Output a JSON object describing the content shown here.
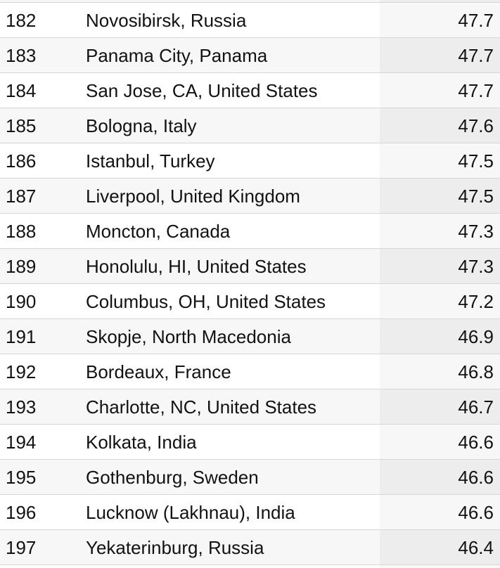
{
  "table": {
    "rows": [
      {
        "rank": "182",
        "city": "Novosibirsk, Russia",
        "score": "47.7"
      },
      {
        "rank": "183",
        "city": "Panama City, Panama",
        "score": "47.7"
      },
      {
        "rank": "184",
        "city": "San Jose, CA, United States",
        "score": "47.7"
      },
      {
        "rank": "185",
        "city": "Bologna, Italy",
        "score": "47.6"
      },
      {
        "rank": "186",
        "city": "Istanbul, Turkey",
        "score": "47.5"
      },
      {
        "rank": "187",
        "city": "Liverpool, United Kingdom",
        "score": "47.5"
      },
      {
        "rank": "188",
        "city": "Moncton, Canada",
        "score": "47.3"
      },
      {
        "rank": "189",
        "city": "Honolulu, HI, United States",
        "score": "47.3"
      },
      {
        "rank": "190",
        "city": "Columbus, OH, United States",
        "score": "47.2"
      },
      {
        "rank": "191",
        "city": "Skopje, North Macedonia",
        "score": "46.9"
      },
      {
        "rank": "192",
        "city": "Bordeaux, France",
        "score": "46.8"
      },
      {
        "rank": "193",
        "city": "Charlotte, NC, United States",
        "score": "46.7"
      },
      {
        "rank": "194",
        "city": "Kolkata, India",
        "score": "46.6"
      },
      {
        "rank": "195",
        "city": "Gothenburg, Sweden",
        "score": "46.6"
      },
      {
        "rank": "196",
        "city": "Lucknow (Lakhnau), India",
        "score": "46.6"
      },
      {
        "rank": "197",
        "city": "Yekaterinburg, Russia",
        "score": "46.4"
      }
    ]
  },
  "colors": {
    "row_white": "#ffffff",
    "row_stripe": "#f7f7f7",
    "score_column_on_white": "#f7f7f7",
    "score_column_on_stripe": "#ededed",
    "divider": "#d6d6d6",
    "text": "#121212"
  }
}
